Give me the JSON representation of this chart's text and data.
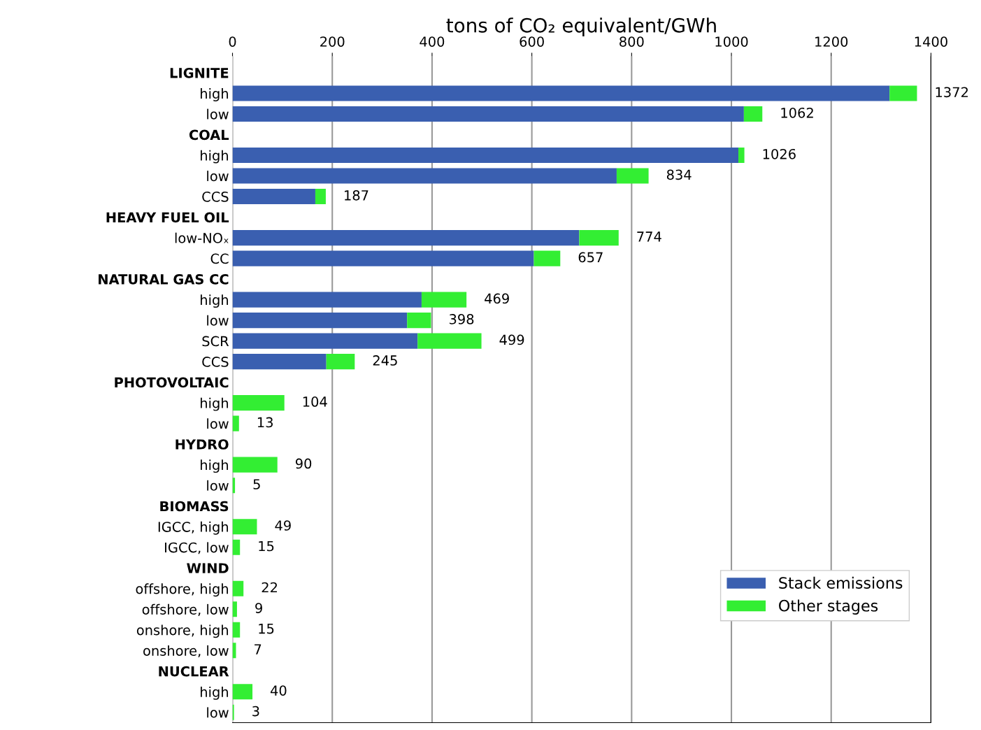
{
  "chart_data": {
    "type": "bar",
    "orientation": "horizontal",
    "stacked": true,
    "xlabel": "tons of CO₂ equivalent/GWh",
    "categories": [
      "LIGNITE",
      "high",
      "low",
      "COAL",
      "high",
      "low",
      "CCS",
      "HEAVY FUEL OIL",
      "low-NOₓ",
      "CC",
      "NATURAL GAS CC",
      "high",
      "low",
      "SCR",
      "CCS",
      "PHOTOVOLTAIC",
      "high",
      "low",
      "HYDRO",
      "high",
      "low",
      "BIOMASS",
      "IGCC, high",
      "IGCC, low",
      "WIND",
      "offshore, high",
      "offshore, low",
      "onshore, high",
      "onshore, low",
      "NUCLEAR",
      "high",
      "low"
    ],
    "series": [
      {
        "name": "Stack emissions",
        "color": "#3a5fb0",
        "values": [
          null,
          1317,
          1025,
          null,
          1014,
          770,
          166,
          null,
          695,
          604,
          null,
          379,
          350,
          371,
          188,
          null,
          0,
          0,
          null,
          0,
          0,
          null,
          0,
          0,
          null,
          0,
          0,
          0,
          0,
          null,
          0,
          0
        ]
      },
      {
        "name": "Other stages",
        "color": "#33ee33",
        "values": [
          null,
          55,
          37,
          null,
          12,
          64,
          21,
          null,
          79,
          53,
          null,
          90,
          48,
          128,
          57,
          null,
          104,
          13,
          null,
          90,
          5,
          null,
          49,
          15,
          null,
          22,
          9,
          15,
          7,
          null,
          40,
          3
        ]
      }
    ],
    "totals": [
      null,
      "1372",
      "1062",
      null,
      "1026",
      "834",
      "187",
      null,
      "774",
      "657",
      null,
      "469",
      "398",
      "499",
      "245",
      null,
      "104",
      "13",
      null,
      "90",
      "5",
      null,
      "49",
      "15",
      null,
      "22",
      "9",
      "15",
      "7",
      null,
      "40",
      "3"
    ],
    "xlim": [
      0,
      1400
    ],
    "xticks": [
      0,
      200,
      400,
      600,
      800,
      1000,
      1200,
      1400
    ],
    "grid": "x",
    "legend": "bottom right"
  }
}
